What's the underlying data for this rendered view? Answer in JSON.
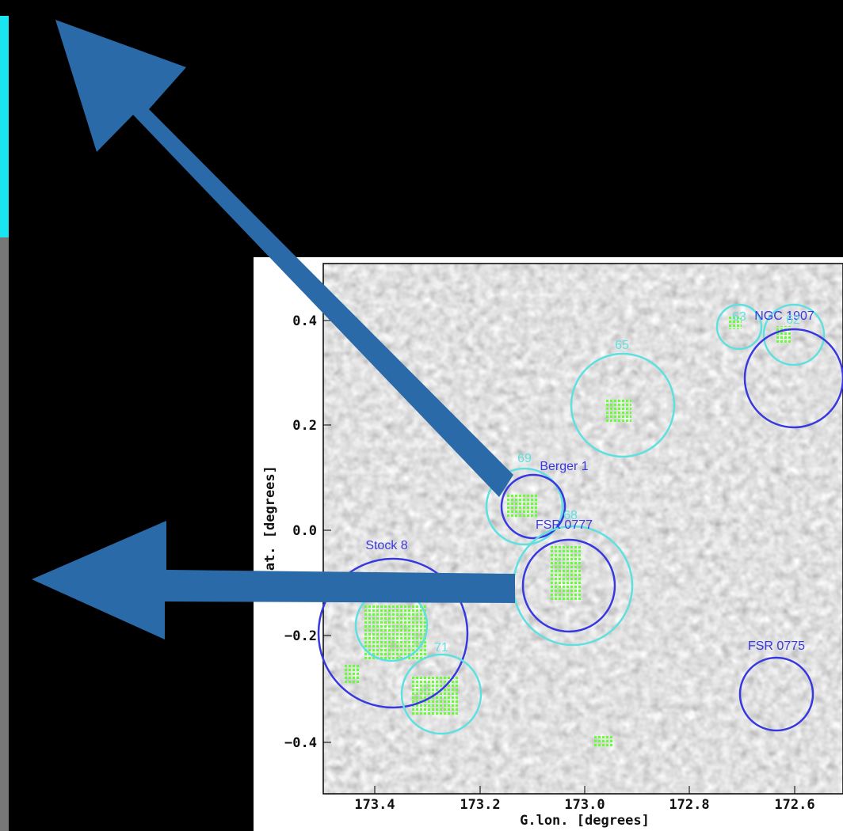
{
  "plot": {
    "x_axis_title": "G.lon. [degrees]",
    "y_axis_title": "G.lat. [degrees]",
    "x_tick_labels": [
      "173.4",
      "173.2",
      "173.0",
      "172.8",
      "172.6"
    ],
    "y_tick_labels": [
      "0.4",
      "0.2",
      "0.0",
      "−0.2",
      "−0.4"
    ],
    "labels": [
      "65",
      "63",
      "NGC 1907",
      "62",
      "69",
      "Berger 1",
      "68",
      "FSR 0777",
      "Stock 8",
      "71",
      "FSR 0775"
    ]
  }
}
